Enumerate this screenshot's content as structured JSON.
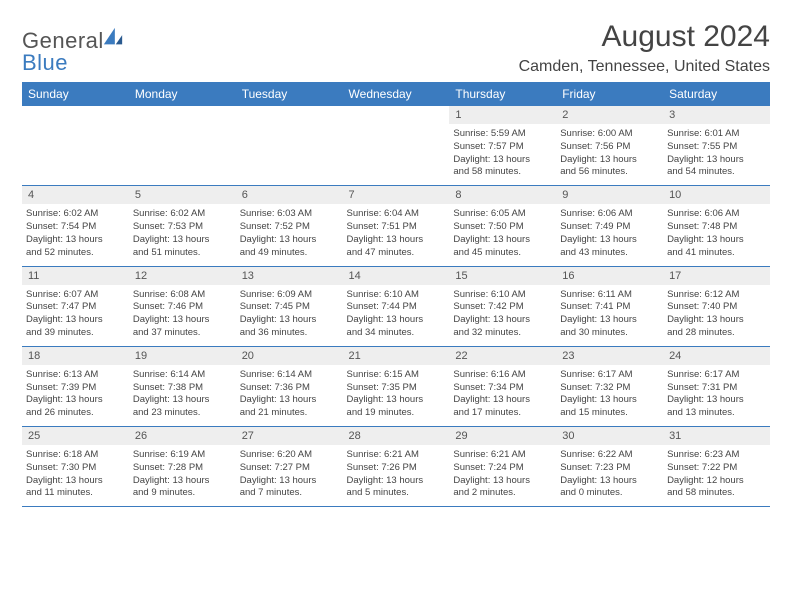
{
  "logo": {
    "word1": "General",
    "word2": "Blue",
    "accent": "#3b7bbf",
    "text_color": "#555555"
  },
  "header": {
    "title": "August 2024",
    "location": "Camden, Tennessee, United States"
  },
  "style": {
    "header_bg": "#3b7bbf",
    "header_fg": "#ffffff",
    "daynum_bg": "#eeeeee",
    "border_color": "#3b7bbf",
    "text_color": "#444444"
  },
  "weekdays": [
    "Sunday",
    "Monday",
    "Tuesday",
    "Wednesday",
    "Thursday",
    "Friday",
    "Saturday"
  ],
  "weeks": [
    [
      null,
      null,
      null,
      null,
      {
        "n": "1",
        "sr": "5:59 AM",
        "ss": "7:57 PM",
        "dl1": "13 hours",
        "dl2": "and 58 minutes."
      },
      {
        "n": "2",
        "sr": "6:00 AM",
        "ss": "7:56 PM",
        "dl1": "13 hours",
        "dl2": "and 56 minutes."
      },
      {
        "n": "3",
        "sr": "6:01 AM",
        "ss": "7:55 PM",
        "dl1": "13 hours",
        "dl2": "and 54 minutes."
      }
    ],
    [
      {
        "n": "4",
        "sr": "6:02 AM",
        "ss": "7:54 PM",
        "dl1": "13 hours",
        "dl2": "and 52 minutes."
      },
      {
        "n": "5",
        "sr": "6:02 AM",
        "ss": "7:53 PM",
        "dl1": "13 hours",
        "dl2": "and 51 minutes."
      },
      {
        "n": "6",
        "sr": "6:03 AM",
        "ss": "7:52 PM",
        "dl1": "13 hours",
        "dl2": "and 49 minutes."
      },
      {
        "n": "7",
        "sr": "6:04 AM",
        "ss": "7:51 PM",
        "dl1": "13 hours",
        "dl2": "and 47 minutes."
      },
      {
        "n": "8",
        "sr": "6:05 AM",
        "ss": "7:50 PM",
        "dl1": "13 hours",
        "dl2": "and 45 minutes."
      },
      {
        "n": "9",
        "sr": "6:06 AM",
        "ss": "7:49 PM",
        "dl1": "13 hours",
        "dl2": "and 43 minutes."
      },
      {
        "n": "10",
        "sr": "6:06 AM",
        "ss": "7:48 PM",
        "dl1": "13 hours",
        "dl2": "and 41 minutes."
      }
    ],
    [
      {
        "n": "11",
        "sr": "6:07 AM",
        "ss": "7:47 PM",
        "dl1": "13 hours",
        "dl2": "and 39 minutes."
      },
      {
        "n": "12",
        "sr": "6:08 AM",
        "ss": "7:46 PM",
        "dl1": "13 hours",
        "dl2": "and 37 minutes."
      },
      {
        "n": "13",
        "sr": "6:09 AM",
        "ss": "7:45 PM",
        "dl1": "13 hours",
        "dl2": "and 36 minutes."
      },
      {
        "n": "14",
        "sr": "6:10 AM",
        "ss": "7:44 PM",
        "dl1": "13 hours",
        "dl2": "and 34 minutes."
      },
      {
        "n": "15",
        "sr": "6:10 AM",
        "ss": "7:42 PM",
        "dl1": "13 hours",
        "dl2": "and 32 minutes."
      },
      {
        "n": "16",
        "sr": "6:11 AM",
        "ss": "7:41 PM",
        "dl1": "13 hours",
        "dl2": "and 30 minutes."
      },
      {
        "n": "17",
        "sr": "6:12 AM",
        "ss": "7:40 PM",
        "dl1": "13 hours",
        "dl2": "and 28 minutes."
      }
    ],
    [
      {
        "n": "18",
        "sr": "6:13 AM",
        "ss": "7:39 PM",
        "dl1": "13 hours",
        "dl2": "and 26 minutes."
      },
      {
        "n": "19",
        "sr": "6:14 AM",
        "ss": "7:38 PM",
        "dl1": "13 hours",
        "dl2": "and 23 minutes."
      },
      {
        "n": "20",
        "sr": "6:14 AM",
        "ss": "7:36 PM",
        "dl1": "13 hours",
        "dl2": "and 21 minutes."
      },
      {
        "n": "21",
        "sr": "6:15 AM",
        "ss": "7:35 PM",
        "dl1": "13 hours",
        "dl2": "and 19 minutes."
      },
      {
        "n": "22",
        "sr": "6:16 AM",
        "ss": "7:34 PM",
        "dl1": "13 hours",
        "dl2": "and 17 minutes."
      },
      {
        "n": "23",
        "sr": "6:17 AM",
        "ss": "7:32 PM",
        "dl1": "13 hours",
        "dl2": "and 15 minutes."
      },
      {
        "n": "24",
        "sr": "6:17 AM",
        "ss": "7:31 PM",
        "dl1": "13 hours",
        "dl2": "and 13 minutes."
      }
    ],
    [
      {
        "n": "25",
        "sr": "6:18 AM",
        "ss": "7:30 PM",
        "dl1": "13 hours",
        "dl2": "and 11 minutes."
      },
      {
        "n": "26",
        "sr": "6:19 AM",
        "ss": "7:28 PM",
        "dl1": "13 hours",
        "dl2": "and 9 minutes."
      },
      {
        "n": "27",
        "sr": "6:20 AM",
        "ss": "7:27 PM",
        "dl1": "13 hours",
        "dl2": "and 7 minutes."
      },
      {
        "n": "28",
        "sr": "6:21 AM",
        "ss": "7:26 PM",
        "dl1": "13 hours",
        "dl2": "and 5 minutes."
      },
      {
        "n": "29",
        "sr": "6:21 AM",
        "ss": "7:24 PM",
        "dl1": "13 hours",
        "dl2": "and 2 minutes."
      },
      {
        "n": "30",
        "sr": "6:22 AM",
        "ss": "7:23 PM",
        "dl1": "13 hours",
        "dl2": "and 0 minutes."
      },
      {
        "n": "31",
        "sr": "6:23 AM",
        "ss": "7:22 PM",
        "dl1": "12 hours",
        "dl2": "and 58 minutes."
      }
    ]
  ],
  "labels": {
    "sunrise": "Sunrise:",
    "sunset": "Sunset:",
    "daylight": "Daylight:"
  }
}
